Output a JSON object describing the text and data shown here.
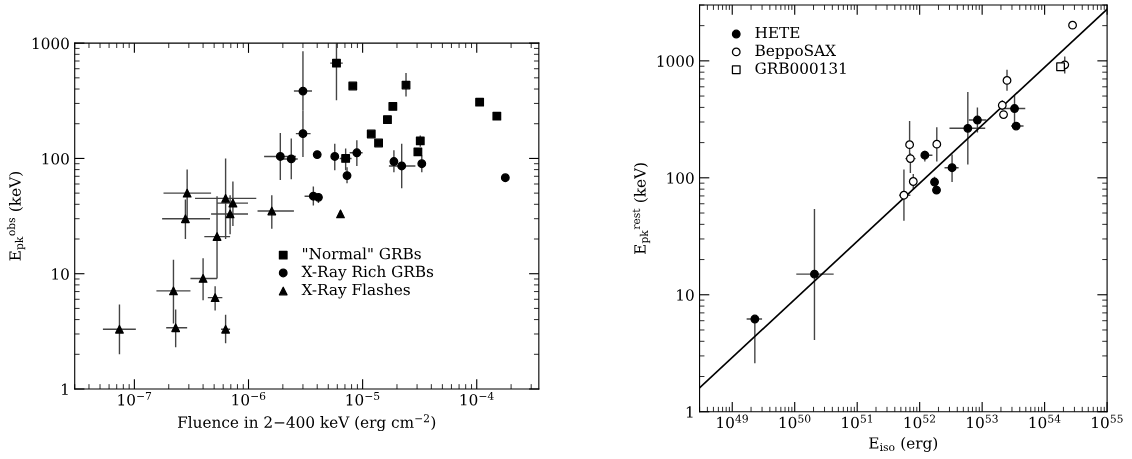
{
  "chart_data": [
    {
      "type": "scatter",
      "xlabel": "Fluence in 2−400 keV (erg cm$^{−2}$)",
      "ylabel": "E$_{pk}$$^{obs}$ (keV)",
      "log": "xy",
      "xlim": [
        3e-08,
        0.00035
      ],
      "ylim": [
        1,
        1000
      ],
      "xticks": [
        {
          "value": 1e-07,
          "label": "10$^{−7}$"
        },
        {
          "value": 1e-06,
          "label": "10$^{−6}$"
        },
        {
          "value": 1e-05,
          "label": "10$^{−5}$"
        },
        {
          "value": 0.0001,
          "label": "10$^{−4}$"
        }
      ],
      "yticks": [
        1,
        10,
        100,
        1000
      ],
      "grid": false,
      "legend": "lower right",
      "series": [
        {
          "name": "\"Normal\" GRBs",
          "color": "#000000",
          "marker": "square",
          "x": [
            5.9e-06,
            7.1e-06,
            8.2e-06,
            1.19e-05,
            1.38e-05,
            1.65e-05,
            1.84e-05,
            2.4e-05,
            3.05e-05,
            3.2e-05,
            0.000106,
            0.00015
          ],
          "values": [
            671,
            100,
            425,
            163,
            136,
            217,
            283,
            433,
            114,
            142,
            308,
            233
          ],
          "errors": [
            [
              319,
              1000
            ],
            [
              79,
              122
            ],
            null,
            null,
            null,
            null,
            null,
            [
              345,
              550
            ],
            null,
            [
              126,
              158
            ],
            null,
            null
          ],
          "xerrors": [
            [
              5.2e-06,
              6.7e-06
            ],
            [
              6.3e-06,
              8e-06
            ],
            null,
            null,
            null,
            null,
            null,
            null,
            null,
            null,
            null,
            null
          ]
        },
        {
          "name": "X-Ray Rich GRBs",
          "color": "#000000",
          "marker": "circle",
          "x": [
            1.9e-06,
            2.37e-06,
            3e-06,
            3e-06,
            4e-06,
            3.7e-06,
            4.1e-06,
            5.7e-06,
            7.3e-06,
            8.9e-06,
            1.88e-05,
            2.2e-05,
            3.3e-05,
            0.000178
          ],
          "values": [
            104,
            99,
            384,
            164,
            108,
            47,
            46,
            104,
            71,
            112,
            94,
            86,
            90,
            68
          ],
          "errors": [
            [
              65,
              166
            ],
            [
              66,
              149
            ],
            [
              261,
              850
            ],
            [
              103,
              261
            ],
            null,
            [
              39,
              57
            ],
            [
              41,
              50
            ],
            [
              79,
              134
            ],
            [
              61,
              84
            ],
            [
              86,
              144
            ],
            [
              76,
              118
            ],
            [
              55,
              134
            ],
            [
              76,
              106
            ],
            null
          ],
          "xerrors": [
            [
              1.37e-06,
              2.6e-06
            ],
            [
              1.9e-06,
              2.7e-06
            ],
            [
              2.5e-06,
              3.6e-06
            ],
            [
              2.6e-06,
              3.5e-06
            ],
            null,
            [
              3.1e-06,
              4.3e-06
            ],
            null,
            null,
            null,
            [
              7.7e-06,
              1e-05
            ],
            null,
            [
              1.7e-05,
              2.9e-05
            ],
            null,
            null
          ]
        },
        {
          "name": "X-Ray Flashes",
          "color": "#000000",
          "marker": "triangle",
          "x": [
            7.4e-08,
            2.2e-07,
            2.3e-07,
            2.9e-07,
            2.8e-07,
            4e-07,
            5.1e-07,
            5.3e-07,
            6.3e-07,
            6.3e-07,
            6.9e-07,
            7.3e-07,
            1.6e-06,
            6.4e-06
          ],
          "values": [
            3.3,
            7.1,
            3.4,
            50,
            30,
            9.1,
            6.2,
            21,
            3.3,
            45,
            33,
            41,
            35,
            33
          ],
          "errors": [
            [
              2.0,
              5.4
            ],
            [
              3.7,
              13.2
            ],
            [
              2.3,
              4.9
            ],
            [
              28,
              80
            ],
            [
              20,
              44
            ],
            [
              5.9,
              13.6
            ],
            [
              4.8,
              7.8
            ],
            [
              9.1,
              47
            ],
            [
              2.5,
              4.4
            ],
            [
              20,
              100
            ],
            [
              22,
              48
            ],
            [
              26,
              63
            ],
            [
              24.5,
              48
            ],
            null
          ],
          "xerrors": [
            [
              5.3e-08,
              1.03e-07
            ],
            [
              1.56e-07,
              3.1e-07
            ],
            [
              1.9e-07,
              2.9e-07
            ],
            [
              1.8e-07,
              4.7e-07
            ],
            [
              1.75e-07,
              4.6e-07
            ],
            [
              3.1e-07,
              5.3e-07
            ],
            [
              4.4e-07,
              5.9e-07
            ],
            [
              4.1e-07,
              6.9e-07
            ],
            [
              5.75e-07,
              6.9e-07
            ],
            [
              3.4e-07,
              1.17e-06
            ],
            [
              4.7e-07,
              9.9e-07
            ],
            [
              5.3e-07,
              9.9e-07
            ],
            [
              1.2e-06,
              2.5e-06
            ],
            null
          ]
        }
      ]
    },
    {
      "type": "scatter",
      "xlabel": "E$_{iso}$ (erg)",
      "ylabel": "E$_{pk}$$^{rest}$ (keV)",
      "log": "xy",
      "xlim": [
        3e+48,
        1e+55
      ],
      "ylim": [
        1,
        3000
      ],
      "xticks": [
        {
          "value": 1e+49,
          "label": "10$^{49}$"
        },
        {
          "value": 1e+50,
          "label": "10$^{50}$"
        },
        {
          "value": 1e+51,
          "label": "10$^{51}$"
        },
        {
          "value": 1e+52,
          "label": "10$^{52}$"
        },
        {
          "value": 1e+53,
          "label": "10$^{53}$"
        },
        {
          "value": 1e+54,
          "label": "10$^{54}$"
        },
        {
          "value": 1e+55,
          "label": "10$^{55}$"
        }
      ],
      "yticks": [
        1,
        10,
        100,
        1000
      ],
      "grid": false,
      "legend": "upper left",
      "series": [
        {
          "name": "HETE",
          "color": "#000000",
          "marker": "circle",
          "x": [
            2.3e+49,
            2.07e+50,
            1.21e+52,
            1.73e+52,
            1.86e+52,
            3.3e+52,
            5.9e+52,
            8.4e+52,
            3.3e+53,
            3.5e+53
          ],
          "values": [
            6.2,
            15,
            156,
            92,
            78.5,
            122,
            265,
            312,
            391,
            277
          ],
          "errors": [
            [
              2.6,
              6.2
            ],
            [
              4.1,
              54
            ],
            [
              138,
              170
            ],
            [
              81,
              102
            ],
            null,
            [
              92,
              158
            ],
            [
              130,
              542
            ],
            [
              244,
              399
            ],
            [
              260,
              508
            ],
            null
          ],
          "xerrors": [
            [
              1.7e+49,
              3e+49
            ],
            [
              1.06e+50,
              4.2e+50
            ],
            [
              1.1e+52,
              1.6e+52
            ],
            null,
            null,
            [
              2.5e+52,
              4.2e+52
            ],
            [
              3e+52,
              1.12e+53
            ],
            [
              6.1e+52,
              1.17e+53
            ],
            [
              2e+53,
              4.9e+53
            ],
            [
              2.9e+53,
              4.6e+53
            ]
          ]
        },
        {
          "name": "BeppoSAX",
          "color": "#ffffff",
          "marker": "circle",
          "x": [
            5.6e+51,
            6.9e+51,
            7.1e+51,
            7.9e+51,
            1.88e+52,
            2.1e+53,
            2.2e+53,
            2.5e+53,
            2.1e+54,
            2.8e+54
          ],
          "values": [
            71,
            192,
            146,
            93,
            194,
            417,
            347,
            680,
            925,
            2020
          ],
          "errors": [
            [
              43,
              118
            ],
            [
              135,
              306
            ],
            [
              110,
              162
            ],
            [
              80,
              108
            ],
            [
              138,
              270
            ],
            [
              380,
              460
            ],
            null,
            [
              556,
              840
            ],
            [
              780,
              1090
            ],
            null
          ],
          "xerrors": [
            [
              4.7e+51,
              7.1e+51
            ],
            null,
            [
              5.9e+51,
              8.6e+51
            ],
            [
              6.8e+51,
              9e+51
            ],
            null,
            null,
            null,
            null,
            [
              1.9e+54,
              2.4e+54
            ],
            null
          ]
        },
        {
          "name": "GRB000131",
          "color": "#ffffff",
          "marker": "square",
          "x": [
            1.8e+54
          ],
          "values": [
            890
          ]
        },
        {
          "type": "line",
          "color": "#000000",
          "x": [
            3e+48,
            1e+55
          ],
          "values": [
            1.6,
            2770
          ]
        }
      ]
    }
  ]
}
